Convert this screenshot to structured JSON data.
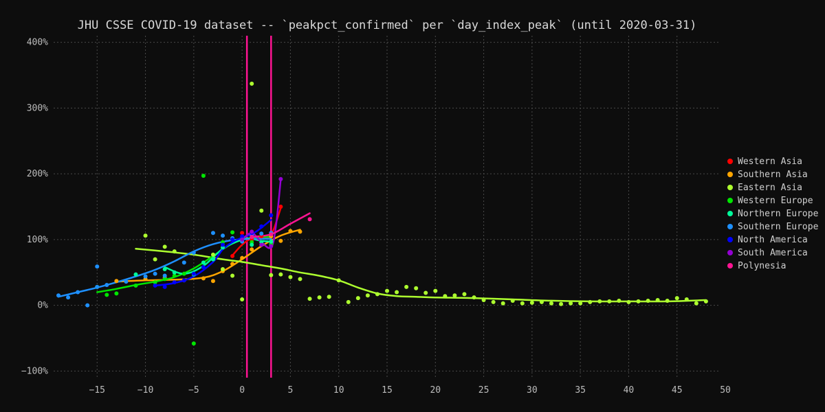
{
  "chart_data": {
    "type": "scatter",
    "title": "JHU CSSE COVID-19 dataset -- `peakpct_confirmed` per `day_index_peak` (until 2020-03-31)",
    "xlabel": "",
    "ylabel": "",
    "xlim": [
      -19.5,
      49.5
    ],
    "ylim": [
      -110,
      410
    ],
    "x_ticks": [
      -15,
      -10,
      -5,
      0,
      5,
      10,
      15,
      20,
      25,
      30,
      35,
      40,
      45,
      50
    ],
    "x_tick_labels": [
      "−15",
      "−10",
      "−5",
      "0",
      "5",
      "10",
      "15",
      "20",
      "25",
      "30",
      "35",
      "40",
      "45",
      "50"
    ],
    "y_ticks": [
      -100,
      0,
      100,
      200,
      300,
      400
    ],
    "y_tick_labels": [
      "−100%",
      "0%",
      "100%",
      "200%",
      "300%",
      "400%"
    ],
    "grid": true,
    "legend_position": "right",
    "series": [
      {
        "name": "Western Asia",
        "color": "#ff0000",
        "points": [
          [
            -1,
            75
          ],
          [
            0,
            110
          ],
          [
            1,
            100
          ],
          [
            2,
            105
          ],
          [
            3,
            110
          ],
          [
            4,
            150
          ]
        ],
        "trend": [
          [
            -1,
            76
          ],
          [
            0,
            92
          ],
          [
            1,
            102
          ],
          [
            2,
            104
          ],
          [
            3,
            107
          ],
          [
            4,
            148
          ]
        ]
      },
      {
        "name": "Southern Asia",
        "color": "#ffa500",
        "points": [
          [
            -13,
            37
          ],
          [
            -10,
            40
          ],
          [
            -8,
            42
          ],
          [
            -6,
            38
          ],
          [
            -4,
            41
          ],
          [
            -3,
            37
          ],
          [
            -2,
            52
          ],
          [
            -1,
            63
          ],
          [
            0,
            72
          ],
          [
            1,
            85
          ],
          [
            2,
            92
          ],
          [
            3,
            105
          ],
          [
            4,
            98
          ],
          [
            5,
            113
          ],
          [
            6,
            112
          ]
        ],
        "trend": [
          [
            -13,
            36
          ],
          [
            -10,
            38
          ],
          [
            -7,
            39
          ],
          [
            -4,
            42
          ],
          [
            -2,
            52
          ],
          [
            0,
            70
          ],
          [
            2,
            90
          ],
          [
            4,
            106
          ],
          [
            6,
            115
          ]
        ]
      },
      {
        "name": "Eastern Asia",
        "color": "#adff2f",
        "points": [
          [
            -10,
            106
          ],
          [
            -9,
            70
          ],
          [
            -8,
            89
          ],
          [
            -7,
            82
          ],
          [
            -3,
            77
          ],
          [
            -2,
            55
          ],
          [
            -1,
            45
          ],
          [
            0,
            9
          ],
          [
            1,
            337
          ],
          [
            2,
            144
          ],
          [
            3,
            46
          ],
          [
            4,
            47
          ],
          [
            5,
            43
          ],
          [
            6,
            40
          ],
          [
            7,
            10
          ],
          [
            8,
            12
          ],
          [
            9,
            13
          ],
          [
            10,
            38
          ],
          [
            11,
            5
          ],
          [
            12,
            11
          ],
          [
            13,
            15
          ],
          [
            14,
            17
          ],
          [
            15,
            22
          ],
          [
            16,
            20
          ],
          [
            17,
            28
          ],
          [
            18,
            26
          ],
          [
            19,
            19
          ],
          [
            20,
            22
          ],
          [
            21,
            14
          ],
          [
            22,
            15
          ],
          [
            23,
            17
          ],
          [
            24,
            12
          ],
          [
            25,
            8
          ],
          [
            26,
            5
          ],
          [
            27,
            3
          ],
          [
            28,
            7
          ],
          [
            29,
            3
          ],
          [
            30,
            4
          ],
          [
            31,
            5
          ],
          [
            32,
            3
          ],
          [
            33,
            2
          ],
          [
            34,
            3
          ],
          [
            35,
            3
          ],
          [
            36,
            5
          ],
          [
            37,
            6
          ],
          [
            38,
            6
          ],
          [
            39,
            7
          ],
          [
            40,
            5
          ],
          [
            41,
            6
          ],
          [
            42,
            7
          ],
          [
            43,
            8
          ],
          [
            44,
            7
          ],
          [
            45,
            11
          ],
          [
            46,
            9
          ],
          [
            47,
            3
          ],
          [
            48,
            6
          ]
        ],
        "trend": [
          [
            -11,
            86
          ],
          [
            -8,
            82
          ],
          [
            -5,
            77
          ],
          [
            -2,
            70
          ],
          [
            0,
            66
          ],
          [
            2,
            61
          ],
          [
            4,
            56
          ],
          [
            6,
            50
          ],
          [
            8,
            45
          ],
          [
            10,
            38
          ],
          [
            12,
            27
          ],
          [
            14,
            18
          ],
          [
            16,
            14
          ],
          [
            18,
            13
          ],
          [
            20,
            12
          ],
          [
            24,
            11
          ],
          [
            28,
            9
          ],
          [
            32,
            7
          ],
          [
            36,
            6
          ],
          [
            40,
            6
          ],
          [
            44,
            6
          ],
          [
            48,
            8
          ]
        ]
      },
      {
        "name": "Western Europe",
        "color": "#00e600",
        "points": [
          [
            -15,
            28
          ],
          [
            -14,
            16
          ],
          [
            -13,
            18
          ],
          [
            -11,
            30
          ],
          [
            -9,
            35
          ],
          [
            -8,
            40
          ],
          [
            -7,
            45
          ],
          [
            -6,
            48
          ],
          [
            -5,
            -58
          ],
          [
            -4,
            197
          ],
          [
            -3,
            70
          ],
          [
            -2,
            96
          ],
          [
            -1,
            111
          ],
          [
            0,
            100
          ],
          [
            1,
            96
          ],
          [
            3,
            93
          ]
        ],
        "trend": [
          [
            -15,
            20
          ],
          [
            -13,
            25
          ],
          [
            -11,
            31
          ],
          [
            -9,
            36
          ],
          [
            -7,
            43
          ],
          [
            -5,
            56
          ],
          [
            -3,
            75
          ],
          [
            -1,
            94
          ],
          [
            1,
            103
          ],
          [
            3,
            104
          ]
        ]
      },
      {
        "name": "Northern Europe",
        "color": "#00fa9a",
        "points": [
          [
            -11,
            47
          ],
          [
            -8,
            55
          ],
          [
            -7,
            50
          ],
          [
            -5,
            47
          ],
          [
            -4,
            65
          ],
          [
            -3,
            70
          ],
          [
            -2,
            88
          ],
          [
            -1,
            102
          ],
          [
            0,
            100
          ],
          [
            1,
            92
          ],
          [
            2,
            96
          ],
          [
            3,
            97
          ]
        ],
        "trend": [
          [
            -8,
            58
          ],
          [
            -6,
            48
          ],
          [
            -4,
            60
          ],
          [
            -2,
            86
          ],
          [
            0,
            100
          ],
          [
            1,
            101
          ],
          [
            2,
            98
          ],
          [
            3,
            97
          ]
        ]
      },
      {
        "name": "Southern Europe",
        "color": "#1e90ff",
        "points": [
          [
            -19,
            15
          ],
          [
            -18,
            12
          ],
          [
            -17,
            20
          ],
          [
            -15,
            59
          ],
          [
            -15,
            28
          ],
          [
            -14,
            31
          ],
          [
            -12,
            36
          ],
          [
            -10,
            44
          ],
          [
            -9,
            48
          ],
          [
            -8,
            45
          ],
          [
            -6,
            65
          ],
          [
            -5,
            80
          ],
          [
            -3,
            110
          ],
          [
            -2,
            106
          ],
          [
            -1,
            102
          ],
          [
            0,
            97
          ],
          [
            1,
            107
          ],
          [
            2,
            109
          ],
          [
            3,
            110
          ],
          [
            -16,
            0
          ]
        ],
        "trend": [
          [
            -19,
            13
          ],
          [
            -17,
            20
          ],
          [
            -15,
            27
          ],
          [
            -13,
            35
          ],
          [
            -11,
            44
          ],
          [
            -9,
            54
          ],
          [
            -7,
            67
          ],
          [
            -5,
            82
          ],
          [
            -3,
            93
          ],
          [
            -1,
            99
          ],
          [
            1,
            101
          ],
          [
            3,
            101
          ]
        ]
      },
      {
        "name": "North America",
        "color": "#0000ff",
        "points": [
          [
            -9,
            30
          ],
          [
            -8,
            28
          ],
          [
            -7,
            35
          ],
          [
            -6,
            38
          ],
          [
            -5,
            48
          ],
          [
            -4,
            58
          ],
          [
            -2,
            92
          ],
          [
            -1,
            100
          ],
          [
            0,
            105
          ],
          [
            1,
            110
          ],
          [
            2,
            120
          ],
          [
            3,
            137
          ]
        ],
        "trend": [
          [
            -9,
            30
          ],
          [
            -7,
            34
          ],
          [
            -5,
            44
          ],
          [
            -3,
            66
          ],
          [
            -2,
            85
          ],
          [
            -1,
            96
          ],
          [
            0,
            103
          ],
          [
            1,
            108
          ],
          [
            2,
            118
          ],
          [
            3,
            130
          ]
        ]
      },
      {
        "name": "South America",
        "color": "#9400d3",
        "points": [
          [
            0,
            100
          ],
          [
            1,
            112
          ],
          [
            2,
            92
          ],
          [
            3,
            90
          ],
          [
            4,
            192
          ]
        ],
        "trend": [
          [
            0,
            100
          ],
          [
            1,
            110
          ],
          [
            2,
            96
          ],
          [
            3,
            88
          ],
          [
            3.5,
            120
          ],
          [
            4,
            192
          ]
        ]
      },
      {
        "name": "Polynesia",
        "color": "#ff1493",
        "points": [
          [
            1,
            104
          ],
          [
            3,
            108
          ],
          [
            7,
            131
          ]
        ],
        "trend": [
          [
            1,
            104
          ],
          [
            3,
            108
          ],
          [
            5,
            124
          ],
          [
            7,
            140
          ]
        ]
      }
    ],
    "vertical_lines": [
      {
        "x": 0.5,
        "color": "#ff1493"
      },
      {
        "x": 3.0,
        "color": "#ff1493"
      }
    ]
  }
}
